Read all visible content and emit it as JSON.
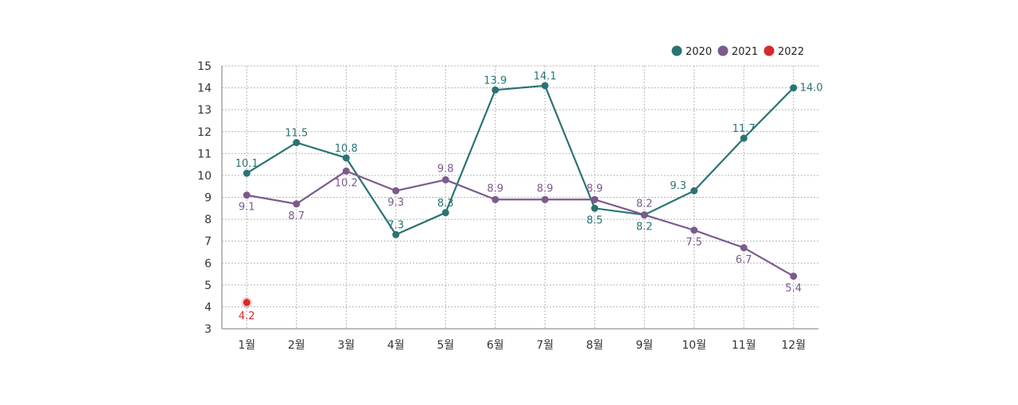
{
  "chart_data": {
    "type": "line",
    "categories": [
      "1월",
      "2월",
      "3월",
      "4월",
      "5월",
      "6월",
      "7월",
      "8월",
      "9월",
      "10월",
      "11월",
      "12월"
    ],
    "ylim": [
      3,
      15
    ],
    "yticks": [
      3,
      4,
      5,
      6,
      7,
      8,
      9,
      10,
      11,
      12,
      13,
      14,
      15
    ],
    "grid": true,
    "legend_position": "top-right",
    "series": [
      {
        "name": "2020",
        "color": "#2b7373",
        "values": [
          10.1,
          11.5,
          10.8,
          7.3,
          8.3,
          13.9,
          14.1,
          8.5,
          8.2,
          9.3,
          11.7,
          14.0
        ]
      },
      {
        "name": "2021",
        "color": "#7b5a8c",
        "values": [
          9.1,
          8.7,
          10.2,
          9.3,
          9.8,
          8.9,
          8.9,
          8.9,
          8.2,
          7.5,
          6.7,
          5.4
        ]
      },
      {
        "name": "2022",
        "color": "#d42a2a",
        "values": [
          4.2,
          null,
          null,
          null,
          null,
          null,
          null,
          null,
          null,
          null,
          null,
          null
        ]
      }
    ]
  }
}
